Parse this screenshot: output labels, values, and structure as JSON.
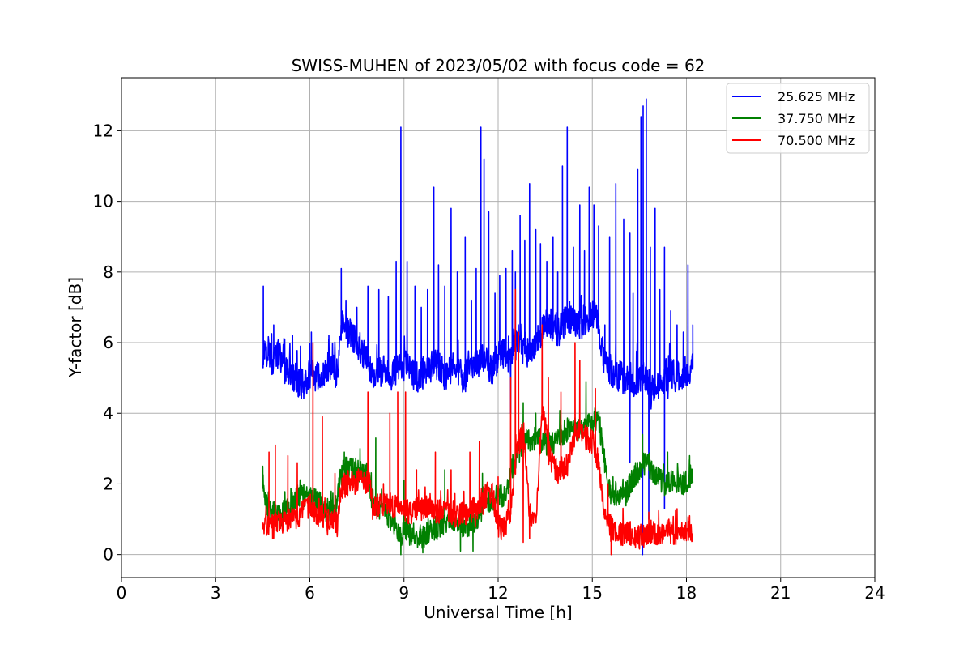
{
  "chart_data": {
    "type": "line",
    "title": "SWISS-MUHEN of 2023/05/02 with focus code = 62",
    "xlabel": "Universal Time [h]",
    "ylabel": "Y-factor [dB]",
    "xlim": [
      0,
      24
    ],
    "ylim": [
      -0.65,
      13.5
    ],
    "xticks": [
      0,
      3,
      6,
      9,
      12,
      15,
      18,
      21,
      24
    ],
    "yticks": [
      0,
      2,
      4,
      6,
      8,
      10,
      12
    ],
    "grid": true,
    "legend_position": "top-right",
    "series": [
      {
        "name": "25.625 MHz",
        "color": "#0000ff",
        "x": [
          4.5,
          4.6,
          4.8,
          5.0,
          5.2,
          5.5,
          5.8,
          6.0,
          6.3,
          6.6,
          6.9,
          7.0,
          7.2,
          7.5,
          7.8,
          8.0,
          8.3,
          8.6,
          8.9,
          9.1,
          9.4,
          9.7,
          10.0,
          10.3,
          10.6,
          10.9,
          11.2,
          11.5,
          11.8,
          12.1,
          12.4,
          12.7,
          13.0,
          13.3,
          13.6,
          13.9,
          14.2,
          14.5,
          14.8,
          15.1,
          15.4,
          15.7,
          16.0,
          16.3,
          16.6,
          16.9,
          17.2,
          17.5,
          17.8,
          18.0,
          18.2
        ],
        "y": [
          5.6,
          6.0,
          5.5,
          5.7,
          5.2,
          5.0,
          4.8,
          5.1,
          5.0,
          5.3,
          5.1,
          6.5,
          6.3,
          6.0,
          5.6,
          5.0,
          5.2,
          5.1,
          5.4,
          5.3,
          5.0,
          5.2,
          5.4,
          5.1,
          5.3,
          5.0,
          5.3,
          5.6,
          5.2,
          5.8,
          5.4,
          6.2,
          5.6,
          6.2,
          6.6,
          6.3,
          6.7,
          6.5,
          6.6,
          6.8,
          5.4,
          5.1,
          5.0,
          4.9,
          5.1,
          4.7,
          4.9,
          5.1,
          5.0,
          5.2,
          5.3
        ],
        "band": 0.9,
        "spikes": [
          [
            4.52,
            7.6
          ],
          [
            4.85,
            6.5
          ],
          [
            5.2,
            6.1
          ],
          [
            5.45,
            6.2
          ],
          [
            5.7,
            5.9
          ],
          [
            6.05,
            6.3
          ],
          [
            6.6,
            6.1
          ],
          [
            7.0,
            8.1
          ],
          [
            7.15,
            7.2
          ],
          [
            7.5,
            7.0
          ],
          [
            7.85,
            7.6
          ],
          [
            8.2,
            7.5
          ],
          [
            8.5,
            7.3
          ],
          [
            8.75,
            8.3
          ],
          [
            8.9,
            12.1
          ],
          [
            9.1,
            8.3
          ],
          [
            9.35,
            7.6
          ],
          [
            9.55,
            7.0
          ],
          [
            9.75,
            7.5
          ],
          [
            9.95,
            10.4
          ],
          [
            10.1,
            8.2
          ],
          [
            10.3,
            7.6
          ],
          [
            10.5,
            9.8
          ],
          [
            10.7,
            8.0
          ],
          [
            10.95,
            9.0
          ],
          [
            11.15,
            7.2
          ],
          [
            11.3,
            8.1
          ],
          [
            11.45,
            12.1
          ],
          [
            11.55,
            11.2
          ],
          [
            11.7,
            9.7
          ],
          [
            11.9,
            7.4
          ],
          [
            12.05,
            7.9
          ],
          [
            12.25,
            8.1
          ],
          [
            12.45,
            8.6
          ],
          [
            12.55,
            8.0
          ],
          [
            12.7,
            9.6
          ],
          [
            12.85,
            8.9
          ],
          [
            13.0,
            10.5
          ],
          [
            13.2,
            9.2
          ],
          [
            13.35,
            8.8
          ],
          [
            13.55,
            8.3
          ],
          [
            13.75,
            9.0
          ],
          [
            13.9,
            8.0
          ],
          [
            14.05,
            11.0
          ],
          [
            14.2,
            12.1
          ],
          [
            14.4,
            8.7
          ],
          [
            14.6,
            9.9
          ],
          [
            14.75,
            8.6
          ],
          [
            14.9,
            10.4
          ],
          [
            15.05,
            9.9
          ],
          [
            15.2,
            9.3
          ],
          [
            15.4,
            6.5
          ],
          [
            15.55,
            9.0
          ],
          [
            15.75,
            10.5
          ],
          [
            16.0,
            9.5
          ],
          [
            16.2,
            9.1
          ],
          [
            16.3,
            7.4
          ],
          [
            16.45,
            10.9
          ],
          [
            16.55,
            12.4
          ],
          [
            16.62,
            12.7
          ],
          [
            16.72,
            12.9
          ],
          [
            16.85,
            8.7
          ],
          [
            17.0,
            9.8
          ],
          [
            17.15,
            7.5
          ],
          [
            17.3,
            8.7
          ],
          [
            17.5,
            6.9
          ],
          [
            17.7,
            6.5
          ],
          [
            17.9,
            6.3
          ],
          [
            18.05,
            8.2
          ],
          [
            18.2,
            6.5
          ]
        ],
        "dips": [
          [
            16.6,
            0.0
          ],
          [
            16.8,
            1.0
          ],
          [
            17.3,
            1.3
          ],
          [
            16.2,
            2.6
          ],
          [
            12.4,
            4.0
          ]
        ]
      },
      {
        "name": "37.750 MHz",
        "color": "#008000",
        "x": [
          4.5,
          4.7,
          5.0,
          5.3,
          5.6,
          5.9,
          6.2,
          6.5,
          6.8,
          7.0,
          7.2,
          7.5,
          7.8,
          8.0,
          8.3,
          8.6,
          8.9,
          9.2,
          9.5,
          9.8,
          10.1,
          10.4,
          10.7,
          11.0,
          11.3,
          11.6,
          11.9,
          12.2,
          12.5,
          12.8,
          13.1,
          13.4,
          13.7,
          14.0,
          14.3,
          14.6,
          14.9,
          15.2,
          15.5,
          15.8,
          16.1,
          16.4,
          16.7,
          17.0,
          17.3,
          17.6,
          17.9,
          18.2
        ],
        "y": [
          2.0,
          1.2,
          1.1,
          1.3,
          1.6,
          1.7,
          1.5,
          1.3,
          1.2,
          2.3,
          2.5,
          2.4,
          2.3,
          1.5,
          1.3,
          1.0,
          0.6,
          0.6,
          0.5,
          0.6,
          0.8,
          1.0,
          0.9,
          0.8,
          1.0,
          1.5,
          1.6,
          1.7,
          2.6,
          3.2,
          3.3,
          3.2,
          3.1,
          3.4,
          3.6,
          3.5,
          3.7,
          3.9,
          1.8,
          1.7,
          1.8,
          2.3,
          2.6,
          2.3,
          2.0,
          2.1,
          2.0,
          2.3
        ],
        "band": 0.7,
        "spikes": [
          [
            4.5,
            2.5
          ],
          [
            7.1,
            2.9
          ],
          [
            7.6,
            3.0
          ],
          [
            8.1,
            3.3
          ],
          [
            9.0,
            2.1
          ],
          [
            10.3,
            2.4
          ],
          [
            11.5,
            2.3
          ],
          [
            12.8,
            4.3
          ],
          [
            13.2,
            4.0
          ],
          [
            14.8,
            4.9
          ],
          [
            15.1,
            4.0
          ],
          [
            16.6,
            3.4
          ],
          [
            17.4,
            2.9
          ],
          [
            18.1,
            2.8
          ]
        ],
        "dips": [
          [
            8.9,
            0.0
          ],
          [
            9.6,
            0.05
          ],
          [
            10.8,
            0.1
          ],
          [
            11.2,
            0.1
          ]
        ]
      },
      {
        "name": "70.500 MHz",
        "color": "#ff0000",
        "x": [
          4.5,
          4.8,
          5.1,
          5.4,
          5.7,
          6.0,
          6.3,
          6.6,
          6.9,
          7.0,
          7.3,
          7.6,
          7.9,
          8.0,
          8.3,
          8.6,
          8.9,
          9.2,
          9.5,
          9.8,
          10.1,
          10.4,
          10.7,
          11.0,
          11.3,
          11.5,
          11.8,
          12.0,
          12.2,
          12.4,
          12.6,
          12.8,
          13.0,
          13.2,
          13.4,
          13.6,
          13.8,
          14.0,
          14.2,
          14.4,
          14.6,
          14.8,
          15.0,
          15.2,
          15.4,
          15.6,
          15.9,
          16.2,
          16.5,
          16.8,
          17.1,
          17.4,
          17.7,
          18.0,
          18.2
        ],
        "y": [
          0.8,
          0.8,
          0.9,
          1.0,
          1.1,
          1.4,
          1.1,
          1.0,
          0.9,
          1.9,
          2.0,
          2.1,
          2.0,
          1.3,
          1.4,
          1.4,
          1.3,
          1.2,
          1.3,
          1.4,
          1.2,
          1.2,
          1.1,
          1.2,
          1.3,
          1.6,
          1.8,
          0.8,
          0.7,
          1.3,
          3.0,
          3.5,
          1.2,
          0.8,
          4.2,
          3.0,
          2.4,
          2.3,
          2.5,
          3.3,
          3.6,
          3.3,
          3.2,
          2.6,
          1.0,
          0.8,
          0.6,
          0.6,
          0.5,
          0.6,
          0.6,
          0.7,
          0.6,
          0.7,
          0.7
        ],
        "band": 0.7,
        "spikes": [
          [
            4.7,
            2.9
          ],
          [
            4.9,
            3.1
          ],
          [
            5.3,
            2.8
          ],
          [
            5.6,
            2.6
          ],
          [
            6.1,
            6.0
          ],
          [
            6.4,
            3.9
          ],
          [
            6.8,
            2.3
          ],
          [
            7.1,
            2.3
          ],
          [
            7.85,
            4.6
          ],
          [
            8.55,
            4.0
          ],
          [
            8.8,
            4.6
          ],
          [
            9.05,
            4.6
          ],
          [
            9.4,
            2.4
          ],
          [
            10.0,
            2.9
          ],
          [
            10.5,
            2.4
          ],
          [
            11.1,
            2.9
          ],
          [
            11.4,
            3.2
          ],
          [
            12.0,
            2.2
          ],
          [
            12.4,
            5.0
          ],
          [
            12.55,
            7.5
          ],
          [
            12.65,
            6.3
          ],
          [
            13.4,
            6.5
          ],
          [
            13.6,
            5.0
          ],
          [
            14.0,
            4.6
          ],
          [
            14.45,
            6.0
          ],
          [
            14.6,
            5.5
          ],
          [
            15.1,
            4.7
          ],
          [
            15.5,
            2.0
          ],
          [
            16.8,
            1.2
          ],
          [
            17.7,
            1.3
          ],
          [
            18.1,
            1.1
          ]
        ],
        "dips": [
          [
            15.6,
            0.0
          ],
          [
            12.8,
            0.35
          ],
          [
            13.0,
            0.45
          ]
        ]
      }
    ]
  }
}
